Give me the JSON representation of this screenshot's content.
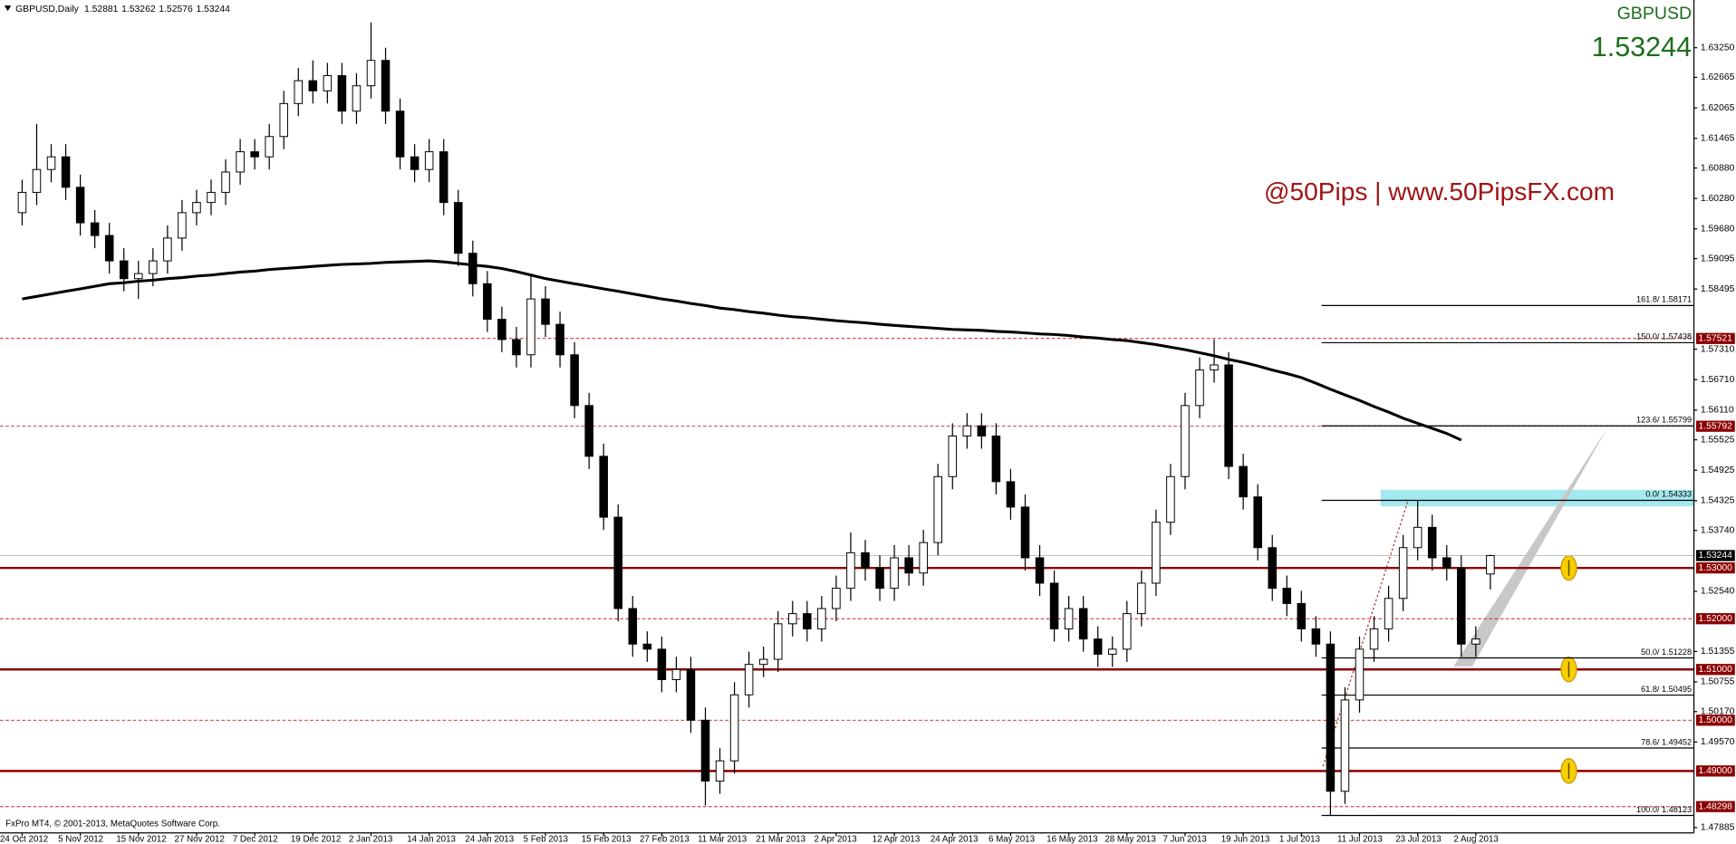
{
  "chart_data": {
    "type": "candlestick",
    "title": "GBPUSD,Daily",
    "symbol": "GBPUSD",
    "brand": "@50Pips | www.50PipsFX.com",
    "copyright": "FxPro MT4, © 2001-2013, MetaQuotes Software Corp.",
    "bull_color": "#ffffff",
    "bear_color": "#000000",
    "level_color": "#8b0000",
    "fib_color": "#000000",
    "categories": [
      "24 Oct 2012",
      null,
      null,
      null,
      "5 Nov 2012",
      null,
      null,
      null,
      "15 Nov 2012",
      null,
      null,
      null,
      "27 Nov 2012",
      null,
      null,
      null,
      "7 Dec 2012",
      null,
      null,
      null,
      "19 Dec 2012",
      null,
      null,
      null,
      "2 Jan 2013",
      null,
      null,
      null,
      "14 Jan 2013",
      null,
      null,
      null,
      "24 Jan 2013",
      null,
      null,
      null,
      "5 Feb 2013",
      null,
      null,
      null,
      "15 Feb 2013",
      null,
      null,
      null,
      "27 Feb 2013",
      null,
      null,
      null,
      "11 Mar 2013",
      null,
      null,
      null,
      "21 Mar 2013",
      null,
      null,
      null,
      "2 Apr 2013",
      null,
      null,
      null,
      "12 Apr 2013",
      null,
      null,
      null,
      "24 Apr 2013",
      null,
      null,
      null,
      "6 May 2013",
      null,
      null,
      null,
      "16 May 2013",
      null,
      null,
      null,
      "28 May 2013",
      null,
      null,
      null,
      "7 Jun 2013",
      null,
      null,
      null,
      "19 Jun 2013",
      null,
      null,
      null,
      "1 Jul 2013",
      null,
      null,
      null,
      "11 Jul 2013",
      null,
      null,
      null,
      "23 Jul 2013",
      null,
      null,
      null,
      "2 Aug 2013",
      null
    ],
    "open": [
      1.6,
      1.604,
      1.6085,
      1.611,
      1.605,
      1.598,
      1.5955,
      1.5905,
      1.587,
      1.588,
      1.5905,
      1.595,
      1.6,
      1.602,
      1.604,
      1.608,
      1.612,
      1.611,
      1.615,
      1.6215,
      1.626,
      1.624,
      1.627,
      1.62,
      1.625,
      1.63,
      1.62,
      1.611,
      1.6085,
      1.612,
      1.602,
      1.592,
      1.586,
      1.579,
      1.575,
      1.572,
      1.583,
      1.578,
      1.572,
      1.562,
      1.552,
      1.54,
      1.522,
      1.515,
      1.514,
      1.508,
      1.51,
      1.5,
      1.488,
      1.492,
      1.505,
      1.511,
      1.512,
      1.519,
      1.521,
      1.518,
      1.522,
      1.526,
      1.533,
      1.53,
      1.526,
      1.532,
      1.529,
      1.535,
      1.548,
      1.556,
      1.558,
      1.556,
      1.547,
      1.542,
      1.532,
      1.527,
      1.518,
      1.522,
      1.516,
      1.513,
      1.514,
      1.521,
      1.527,
      1.539,
      1.548,
      1.562,
      1.569,
      1.57,
      1.55,
      1.544,
      1.534,
      1.526,
      1.523,
      1.518,
      1.515,
      1.486,
      1.504,
      1.514,
      1.518,
      1.524,
      1.534,
      1.538,
      1.532,
      1.53,
      1.515,
      1.52881
    ],
    "high": [
      1.6065,
      1.6175,
      1.6135,
      1.6135,
      1.6075,
      1.6005,
      1.598,
      1.593,
      1.5905,
      1.593,
      1.5975,
      1.6025,
      1.6045,
      1.6065,
      1.6105,
      1.6145,
      1.6145,
      1.6175,
      1.624,
      1.6285,
      1.63,
      1.6295,
      1.6295,
      1.6275,
      1.6375,
      1.6325,
      1.6225,
      1.6135,
      1.6145,
      1.6145,
      1.6045,
      1.5945,
      1.5885,
      1.5815,
      1.5775,
      1.5875,
      1.5855,
      1.5805,
      1.5745,
      1.5645,
      1.5545,
      1.5425,
      1.5245,
      1.5175,
      1.5165,
      1.5125,
      1.5125,
      1.5025,
      1.4945,
      1.5075,
      1.5135,
      1.5145,
      1.5215,
      1.5235,
      1.5235,
      1.5245,
      1.5285,
      1.537,
      1.5355,
      1.5325,
      1.5345,
      1.5345,
      1.5375,
      1.5505,
      1.5585,
      1.5605,
      1.5605,
      1.5585,
      1.5495,
      1.5445,
      1.5345,
      1.5295,
      1.5245,
      1.5245,
      1.5185,
      1.5165,
      1.5235,
      1.5295,
      1.5415,
      1.5505,
      1.5645,
      1.5715,
      1.575,
      1.5725,
      1.5525,
      1.5465,
      1.5365,
      1.5285,
      1.5255,
      1.5205,
      1.5175,
      1.5065,
      1.5165,
      1.5205,
      1.5265,
      1.5365,
      1.5433,
      1.5405,
      1.5345,
      1.5325,
      1.5185,
      1.53262
    ],
    "low": [
      1.5975,
      1.6015,
      1.606,
      1.6025,
      1.5955,
      1.593,
      1.588,
      1.5845,
      1.583,
      1.5855,
      1.588,
      1.5925,
      1.5975,
      1.5995,
      1.6015,
      1.6055,
      1.6085,
      1.6085,
      1.6125,
      1.619,
      1.6215,
      1.6215,
      1.6175,
      1.6175,
      1.6225,
      1.6175,
      1.6085,
      1.606,
      1.606,
      1.5995,
      1.5895,
      1.5835,
      1.5765,
      1.5725,
      1.5695,
      1.5695,
      1.5755,
      1.5695,
      1.5595,
      1.5495,
      1.5375,
      1.5195,
      1.5125,
      1.5115,
      1.5055,
      1.5055,
      1.4975,
      1.4832,
      1.4855,
      1.4895,
      1.5025,
      1.5085,
      1.5095,
      1.5165,
      1.5155,
      1.5155,
      1.5195,
      1.5235,
      1.5275,
      1.5235,
      1.5235,
      1.5265,
      1.5265,
      1.5325,
      1.5455,
      1.5535,
      1.5535,
      1.5445,
      1.5395,
      1.5295,
      1.5245,
      1.5155,
      1.5155,
      1.5135,
      1.5105,
      1.5105,
      1.5115,
      1.5185,
      1.5245,
      1.5365,
      1.5455,
      1.5595,
      1.5665,
      1.5475,
      1.5415,
      1.5315,
      1.5235,
      1.5205,
      1.5155,
      1.5125,
      1.4813,
      1.4835,
      1.5015,
      1.5115,
      1.5155,
      1.5215,
      1.5315,
      1.5295,
      1.5275,
      1.5125,
      1.5125,
      1.52576
    ],
    "close": [
      1.604,
      1.6085,
      1.611,
      1.605,
      1.598,
      1.5955,
      1.5905,
      1.587,
      1.588,
      1.5905,
      1.595,
      1.6,
      1.602,
      1.604,
      1.608,
      1.612,
      1.611,
      1.615,
      1.6215,
      1.626,
      1.624,
      1.627,
      1.62,
      1.625,
      1.63,
      1.62,
      1.611,
      1.6085,
      1.612,
      1.602,
      1.592,
      1.586,
      1.579,
      1.575,
      1.572,
      1.583,
      1.578,
      1.572,
      1.562,
      1.552,
      1.54,
      1.522,
      1.515,
      1.514,
      1.508,
      1.51,
      1.5,
      1.488,
      1.492,
      1.505,
      1.511,
      1.512,
      1.519,
      1.521,
      1.518,
      1.522,
      1.526,
      1.533,
      1.53,
      1.526,
      1.532,
      1.529,
      1.535,
      1.548,
      1.556,
      1.558,
      1.556,
      1.547,
      1.542,
      1.532,
      1.527,
      1.518,
      1.522,
      1.516,
      1.513,
      1.514,
      1.521,
      1.527,
      1.539,
      1.548,
      1.562,
      1.569,
      1.57,
      1.55,
      1.544,
      1.534,
      1.526,
      1.523,
      1.518,
      1.515,
      1.486,
      1.504,
      1.514,
      1.518,
      1.524,
      1.534,
      1.538,
      1.532,
      1.53,
      1.515,
      1.516,
      1.53244
    ],
    "ma": {
      "color": "#000000",
      "values": [
        1.583,
        1.5835,
        1.584,
        1.5845,
        1.585,
        1.5855,
        1.586,
        1.5862,
        1.5865,
        1.5867,
        1.587,
        1.5872,
        1.5875,
        1.5877,
        1.588,
        1.5883,
        1.5885,
        1.5888,
        1.589,
        1.5892,
        1.5894,
        1.5896,
        1.5898,
        1.5899,
        1.59,
        1.5902,
        1.5903,
        1.5904,
        1.5905,
        1.5903,
        1.59,
        1.5897,
        1.5894,
        1.589,
        1.5884,
        1.5877,
        1.587,
        1.5865,
        1.586,
        1.5855,
        1.585,
        1.5845,
        1.584,
        1.5835,
        1.583,
        1.5826,
        1.5821,
        1.5817,
        1.5812,
        1.5809,
        1.5805,
        1.5802,
        1.5798,
        1.5795,
        1.5793,
        1.579,
        1.5787,
        1.5785,
        1.5783,
        1.578,
        1.5778,
        1.5776,
        1.5774,
        1.5772,
        1.577,
        1.5769,
        1.5768,
        1.5766,
        1.5765,
        1.5763,
        1.5761,
        1.576,
        1.5758,
        1.5755,
        1.5753,
        1.575,
        1.5748,
        1.5744,
        1.574,
        1.5735,
        1.573,
        1.5724,
        1.5718,
        1.5711,
        1.5705,
        1.5698,
        1.569,
        1.5683,
        1.5675,
        1.5664,
        1.5652,
        1.5641,
        1.563,
        1.5618,
        1.5607,
        1.5595,
        1.5585,
        1.5575,
        1.5565,
        1.5552,
        null,
        null
      ]
    },
    "ylim": [
      1.4778,
      1.6419
    ],
    "yticks": [
      {
        "value": 1.6325,
        "label": "1.63250"
      },
      1.62665,
      1.62065,
      1.61465,
      {
        "value": 1.6088,
        "label": "1.60880"
      },
      {
        "value": 1.6028,
        "label": "1.60280"
      },
      {
        "value": 1.5968,
        "label": "1.59680"
      },
      1.59095,
      1.58495,
      {
        "value": 1.5731,
        "label": "1.57310"
      },
      {
        "value": 1.5671,
        "label": "1.56710"
      },
      {
        "value": 1.5611,
        "label": "1.56110"
      },
      1.55525,
      1.54925,
      1.54325,
      {
        "value": 1.5374,
        "label": "1.53740"
      },
      {
        "value": 1.5254,
        "label": "1.52540"
      },
      1.51355,
      1.50755,
      {
        "value": 1.5017,
        "label": "1.50170"
      },
      {
        "value": 1.4957,
        "label": "1.49570"
      },
      1.47885
    ],
    "levels": [
      {
        "value": 1.57521,
        "style": "dashed"
      },
      {
        "value": 1.55792,
        "style": "dashed"
      },
      {
        "value": 1.53,
        "label": "1.53000",
        "style": "solid"
      },
      {
        "value": 1.52,
        "label": "1.52000",
        "style": "dashed"
      },
      {
        "value": 1.51,
        "label": "1.51000",
        "style": "solid"
      },
      {
        "value": 1.5,
        "label": "1.50000",
        "style": "dashed"
      },
      {
        "value": 1.49,
        "label": "1.49000",
        "style": "solid"
      },
      {
        "value": 1.48298,
        "style": "dashed"
      }
    ],
    "fibonacci": [
      {
        "value": 1.58171,
        "label": "161.8/ 1.58171"
      },
      {
        "value": 1.57438,
        "label": "150.0/ 1.57438"
      },
      {
        "value": 1.55799,
        "label": "123.6/ 1.55799"
      },
      {
        "value": 1.54333,
        "label": "0.0/ 1.54333"
      },
      {
        "value": 1.51228,
        "label": "50.0/ 1.51228"
      },
      {
        "value": 1.50495,
        "label": "61.8/ 1.50495"
      },
      {
        "value": 1.49452,
        "label": "78.6/ 1.49452"
      },
      {
        "value": 1.48123,
        "label": "100.0/ 1.48123"
      }
    ]
  }
}
